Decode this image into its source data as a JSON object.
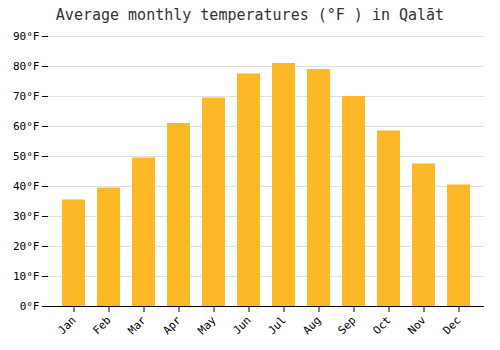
{
  "chart_data": {
    "type": "bar",
    "title": "Average monthly temperatures (°F ) in Qalāt",
    "categories": [
      "Jan",
      "Feb",
      "Mar",
      "Apr",
      "May",
      "Jun",
      "Jul",
      "Aug",
      "Sep",
      "Oct",
      "Nov",
      "Dec"
    ],
    "values": [
      35.5,
      39.5,
      49.5,
      61.0,
      69.5,
      77.5,
      81.0,
      79.0,
      70.0,
      58.5,
      47.5,
      40.5
    ],
    "color": "#FDB827",
    "ylim": [
      0,
      90
    ],
    "yticks": [
      {
        "value": 0,
        "label": "0°F"
      },
      {
        "value": 10,
        "label": "10°F"
      },
      {
        "value": 20,
        "label": "20°F"
      },
      {
        "value": 30,
        "label": "30°F"
      },
      {
        "value": 40,
        "label": "40°F"
      },
      {
        "value": 50,
        "label": "50°F"
      },
      {
        "value": 60,
        "label": "60°F"
      },
      {
        "value": 70,
        "label": "70°F"
      },
      {
        "value": 80,
        "label": "80°F"
      },
      {
        "value": 90,
        "label": "90°F"
      }
    ],
    "grid": true
  }
}
